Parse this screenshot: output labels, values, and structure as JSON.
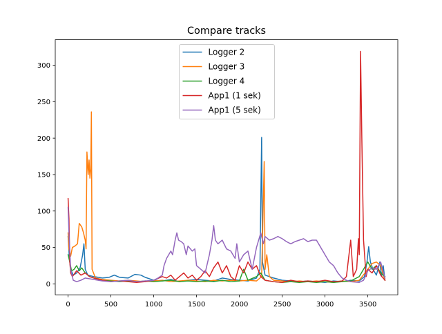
{
  "chart_data": {
    "type": "line",
    "title": "Compare tracks",
    "xlabel": "",
    "ylabel": "",
    "xlim": [
      -150,
      3850
    ],
    "ylim": [
      -15,
      335
    ],
    "xticks": [
      0,
      500,
      1000,
      1500,
      2000,
      2500,
      3000,
      3500
    ],
    "yticks": [
      0,
      50,
      100,
      150,
      200,
      250,
      300
    ],
    "grid": false,
    "legend_position": "top-center",
    "series": [
      {
        "name": "Logger 2",
        "color": "#1f77b4",
        "points": [
          [
            0,
            65
          ],
          [
            15,
            35
          ],
          [
            30,
            20
          ],
          [
            60,
            12
          ],
          [
            100,
            15
          ],
          [
            140,
            22
          ],
          [
            170,
            40
          ],
          [
            185,
            55
          ],
          [
            200,
            20
          ],
          [
            230,
            12
          ],
          [
            300,
            10
          ],
          [
            400,
            8
          ],
          [
            480,
            9
          ],
          [
            540,
            12
          ],
          [
            600,
            9
          ],
          [
            700,
            8
          ],
          [
            780,
            13
          ],
          [
            850,
            12
          ],
          [
            900,
            9
          ],
          [
            1000,
            5
          ],
          [
            1100,
            4
          ],
          [
            1200,
            6
          ],
          [
            1300,
            3
          ],
          [
            1400,
            5
          ],
          [
            1500,
            6
          ],
          [
            1600,
            5
          ],
          [
            1700,
            4
          ],
          [
            1800,
            8
          ],
          [
            1900,
            6
          ],
          [
            2000,
            5
          ],
          [
            2100,
            4
          ],
          [
            2200,
            8
          ],
          [
            2240,
            20
          ],
          [
            2260,
            201
          ],
          [
            2270,
            30
          ],
          [
            2300,
            12
          ],
          [
            2400,
            8
          ],
          [
            2500,
            5
          ],
          [
            2600,
            4
          ],
          [
            2700,
            3
          ],
          [
            2800,
            4
          ],
          [
            2900,
            3
          ],
          [
            3000,
            2
          ],
          [
            3100,
            4
          ],
          [
            3200,
            3
          ],
          [
            3300,
            5
          ],
          [
            3400,
            4
          ],
          [
            3460,
            10
          ],
          [
            3490,
            30
          ],
          [
            3510,
            51
          ],
          [
            3530,
            30
          ],
          [
            3560,
            20
          ],
          [
            3600,
            12
          ],
          [
            3640,
            30
          ],
          [
            3660,
            10
          ],
          [
            3680,
            25
          ],
          [
            3700,
            5
          ]
        ]
      },
      {
        "name": "Logger 3",
        "color": "#ff7f0e",
        "points": [
          [
            0,
            70
          ],
          [
            10,
            48
          ],
          [
            30,
            38
          ],
          [
            50,
            50
          ],
          [
            80,
            52
          ],
          [
            110,
            55
          ],
          [
            130,
            83
          ],
          [
            160,
            78
          ],
          [
            180,
            70
          ],
          [
            200,
            60
          ],
          [
            210,
            48
          ],
          [
            220,
            181
          ],
          [
            235,
            150
          ],
          [
            245,
            170
          ],
          [
            255,
            145
          ],
          [
            265,
            158
          ],
          [
            272,
            236
          ],
          [
            280,
            20
          ],
          [
            320,
            8
          ],
          [
            400,
            6
          ],
          [
            500,
            5
          ],
          [
            600,
            4
          ],
          [
            700,
            5
          ],
          [
            800,
            4
          ],
          [
            900,
            3
          ],
          [
            1000,
            4
          ],
          [
            1100,
            5
          ],
          [
            1200,
            3
          ],
          [
            1300,
            4
          ],
          [
            1400,
            5
          ],
          [
            1500,
            4
          ],
          [
            1600,
            3
          ],
          [
            1700,
            5
          ],
          [
            1800,
            4
          ],
          [
            1900,
            5
          ],
          [
            2000,
            4
          ],
          [
            2100,
            5
          ],
          [
            2200,
            4
          ],
          [
            2260,
            10
          ],
          [
            2290,
            168
          ],
          [
            2300,
            20
          ],
          [
            2320,
            40
          ],
          [
            2350,
            10
          ],
          [
            2400,
            5
          ],
          [
            2500,
            4
          ],
          [
            2600,
            3
          ],
          [
            2700,
            4
          ],
          [
            2800,
            3
          ],
          [
            2900,
            4
          ],
          [
            3000,
            3
          ],
          [
            3100,
            2
          ],
          [
            3200,
            4
          ],
          [
            3300,
            3
          ],
          [
            3400,
            5
          ],
          [
            3500,
            20
          ],
          [
            3550,
            28
          ],
          [
            3600,
            30
          ],
          [
            3650,
            25
          ],
          [
            3700,
            5
          ]
        ]
      },
      {
        "name": "Logger 4",
        "color": "#2ca02c",
        "points": [
          [
            0,
            40
          ],
          [
            20,
            30
          ],
          [
            40,
            18
          ],
          [
            70,
            20
          ],
          [
            100,
            25
          ],
          [
            130,
            18
          ],
          [
            160,
            22
          ],
          [
            200,
            15
          ],
          [
            250,
            10
          ],
          [
            300,
            8
          ],
          [
            400,
            5
          ],
          [
            500,
            4
          ],
          [
            600,
            3
          ],
          [
            700,
            4
          ],
          [
            800,
            3
          ],
          [
            900,
            4
          ],
          [
            1000,
            3
          ],
          [
            1100,
            4
          ],
          [
            1200,
            5
          ],
          [
            1300,
            3
          ],
          [
            1400,
            4
          ],
          [
            1500,
            3
          ],
          [
            1600,
            4
          ],
          [
            1700,
            3
          ],
          [
            1800,
            5
          ],
          [
            1900,
            3
          ],
          [
            2000,
            4
          ],
          [
            2050,
            20
          ],
          [
            2100,
            5
          ],
          [
            2200,
            10
          ],
          [
            2250,
            15
          ],
          [
            2300,
            5
          ],
          [
            2400,
            3
          ],
          [
            2500,
            2
          ],
          [
            2600,
            3
          ],
          [
            2700,
            2
          ],
          [
            2800,
            3
          ],
          [
            2900,
            2
          ],
          [
            3000,
            3
          ],
          [
            3100,
            2
          ],
          [
            3200,
            3
          ],
          [
            3300,
            4
          ],
          [
            3400,
            10
          ],
          [
            3500,
            30
          ],
          [
            3550,
            20
          ],
          [
            3600,
            25
          ],
          [
            3650,
            15
          ],
          [
            3700,
            10
          ]
        ]
      },
      {
        "name": "App1 (1 sek)",
        "color": "#d62728",
        "points": [
          [
            0,
            117
          ],
          [
            10,
            90
          ],
          [
            20,
            30
          ],
          [
            30,
            15
          ],
          [
            50,
            10
          ],
          [
            100,
            18
          ],
          [
            150,
            12
          ],
          [
            200,
            15
          ],
          [
            250,
            10
          ],
          [
            300,
            8
          ],
          [
            400,
            5
          ],
          [
            500,
            3
          ],
          [
            600,
            4
          ],
          [
            700,
            3
          ],
          [
            800,
            2
          ],
          [
            900,
            3
          ],
          [
            1000,
            5
          ],
          [
            1100,
            10
          ],
          [
            1150,
            8
          ],
          [
            1200,
            12
          ],
          [
            1250,
            5
          ],
          [
            1300,
            10
          ],
          [
            1350,
            15
          ],
          [
            1400,
            8
          ],
          [
            1450,
            12
          ],
          [
            1500,
            5
          ],
          [
            1550,
            10
          ],
          [
            1600,
            18
          ],
          [
            1650,
            10
          ],
          [
            1700,
            22
          ],
          [
            1750,
            30
          ],
          [
            1800,
            15
          ],
          [
            1850,
            25
          ],
          [
            1900,
            10
          ],
          [
            1950,
            5
          ],
          [
            2000,
            25
          ],
          [
            2050,
            15
          ],
          [
            2100,
            30
          ],
          [
            2150,
            20
          ],
          [
            2200,
            25
          ],
          [
            2250,
            10
          ],
          [
            2300,
            5
          ],
          [
            2400,
            3
          ],
          [
            2500,
            2
          ],
          [
            2600,
            5
          ],
          [
            2700,
            3
          ],
          [
            2800,
            4
          ],
          [
            2900,
            3
          ],
          [
            3000,
            5
          ],
          [
            3100,
            3
          ],
          [
            3200,
            4
          ],
          [
            3250,
            10
          ],
          [
            3300,
            60
          ],
          [
            3330,
            10
          ],
          [
            3370,
            20
          ],
          [
            3390,
            62
          ],
          [
            3400,
            40
          ],
          [
            3415,
            319
          ],
          [
            3430,
            200
          ],
          [
            3450,
            60
          ],
          [
            3480,
            10
          ],
          [
            3500,
            20
          ],
          [
            3550,
            15
          ],
          [
            3600,
            25
          ],
          [
            3650,
            12
          ],
          [
            3700,
            5
          ]
        ]
      },
      {
        "name": "App1 (5 sek)",
        "color": "#9467bd",
        "points": [
          [
            0,
            105
          ],
          [
            10,
            70
          ],
          [
            30,
            20
          ],
          [
            60,
            5
          ],
          [
            100,
            3
          ],
          [
            150,
            5
          ],
          [
            200,
            8
          ],
          [
            300,
            6
          ],
          [
            400,
            4
          ],
          [
            500,
            3
          ],
          [
            600,
            4
          ],
          [
            700,
            5
          ],
          [
            800,
            3
          ],
          [
            900,
            4
          ],
          [
            1000,
            5
          ],
          [
            1050,
            8
          ],
          [
            1100,
            12
          ],
          [
            1120,
            25
          ],
          [
            1150,
            35
          ],
          [
            1200,
            45
          ],
          [
            1220,
            40
          ],
          [
            1250,
            60
          ],
          [
            1270,
            70
          ],
          [
            1290,
            60
          ],
          [
            1320,
            58
          ],
          [
            1350,
            55
          ],
          [
            1380,
            40
          ],
          [
            1400,
            52
          ],
          [
            1450,
            45
          ],
          [
            1480,
            48
          ],
          [
            1500,
            25
          ],
          [
            1550,
            20
          ],
          [
            1600,
            15
          ],
          [
            1650,
            40
          ],
          [
            1680,
            60
          ],
          [
            1700,
            80
          ],
          [
            1720,
            60
          ],
          [
            1750,
            55
          ],
          [
            1800,
            60
          ],
          [
            1850,
            48
          ],
          [
            1900,
            45
          ],
          [
            1950,
            35
          ],
          [
            1970,
            55
          ],
          [
            2000,
            30
          ],
          [
            2050,
            40
          ],
          [
            2100,
            45
          ],
          [
            2150,
            20
          ],
          [
            2200,
            50
          ],
          [
            2250,
            70
          ],
          [
            2280,
            55
          ],
          [
            2300,
            65
          ],
          [
            2350,
            60
          ],
          [
            2400,
            62
          ],
          [
            2450,
            65
          ],
          [
            2500,
            62
          ],
          [
            2550,
            58
          ],
          [
            2600,
            55
          ],
          [
            2650,
            58
          ],
          [
            2700,
            60
          ],
          [
            2750,
            62
          ],
          [
            2800,
            58
          ],
          [
            2850,
            60
          ],
          [
            2900,
            60
          ],
          [
            2950,
            50
          ],
          [
            3000,
            40
          ],
          [
            3050,
            30
          ],
          [
            3100,
            25
          ],
          [
            3150,
            15
          ],
          [
            3200,
            8
          ],
          [
            3250,
            5
          ],
          [
            3300,
            3
          ],
          [
            3400,
            2
          ],
          [
            3450,
            5
          ],
          [
            3500,
            18
          ],
          [
            3550,
            22
          ],
          [
            3600,
            20
          ],
          [
            3650,
            30
          ],
          [
            3700,
            8
          ]
        ]
      }
    ]
  }
}
